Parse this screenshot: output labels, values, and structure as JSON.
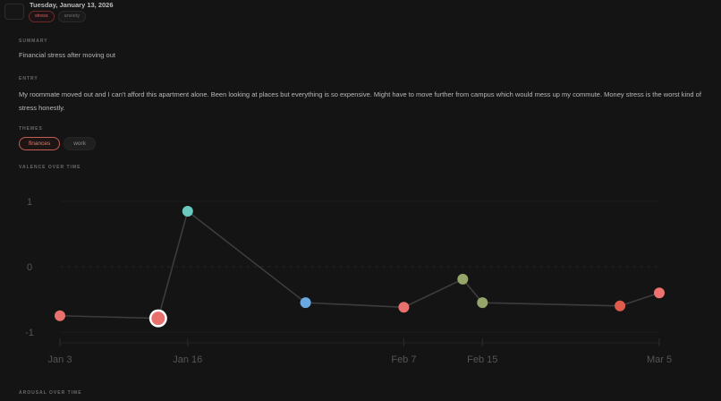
{
  "header": {
    "date": "Tuesday, January 13, 2026",
    "tags": [
      {
        "label": "stress",
        "color": "#d9605f"
      },
      {
        "label": "anxiety",
        "color": "#6d6d6d"
      }
    ]
  },
  "summary": {
    "label": "SUMMARY",
    "text": "Financial stress after moving out"
  },
  "entry": {
    "label": "ENTRY",
    "text": "My roommate moved out and I can't afford this apartment alone. Been looking at places but everything is so expensive. Might have to move further from campus which would mess up my commute. Money stress is the worst kind of stress honestly."
  },
  "themes": {
    "label": "THEMES",
    "items": [
      {
        "label": "finances",
        "active": true
      },
      {
        "label": "work",
        "active": false
      }
    ]
  },
  "valence_section": {
    "label": "VALENCE OVER TIME"
  },
  "arousal_section": {
    "label": "AROUSAL OVER TIME"
  },
  "chart_data": {
    "type": "line",
    "title": "Valence over time",
    "xlabel": "",
    "ylabel": "",
    "ylim": [
      -1,
      1
    ],
    "yticks": [
      "1",
      "0",
      "-1"
    ],
    "xticks": [
      "Jan 3",
      "Jan 16",
      "Feb 7",
      "Feb 15",
      "Mar 5"
    ],
    "grid": true,
    "legend": "none",
    "series": [
      {
        "name": "valence",
        "points": [
          {
            "x": "Jan 3",
            "y": -0.75,
            "color": "#e8716e"
          },
          {
            "x": "Jan 13",
            "y": -0.79,
            "color": "#e8716e",
            "selected": true
          },
          {
            "x": "Jan 16",
            "y": 0.85,
            "color": "#6cc9c0"
          },
          {
            "x": "Jan 28",
            "y": -0.55,
            "color": "#6aa9e0"
          },
          {
            "x": "Feb 7",
            "y": -0.62,
            "color": "#e8716e"
          },
          {
            "x": "Feb 13",
            "y": -0.19,
            "color": "#96a56a"
          },
          {
            "x": "Feb 15",
            "y": -0.55,
            "color": "#96a56a"
          },
          {
            "x": "Mar 1",
            "y": -0.6,
            "color": "#de5c4c"
          },
          {
            "x": "Mar 5",
            "y": -0.4,
            "color": "#ee7370"
          }
        ]
      }
    ]
  }
}
